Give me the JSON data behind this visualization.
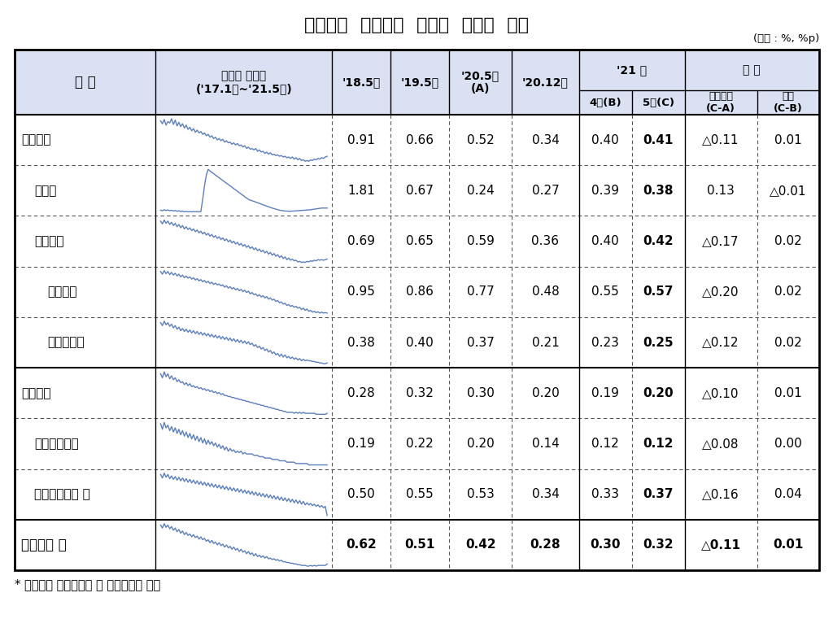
{
  "title": "국내은행  원화대출  부문별  연체율  추이",
  "unit_label": "(단위 : %, %p)",
  "footnote": "* 은행계정 원화대출금 및 신탁대출금 기준",
  "header_bg": "#d9e1f2",
  "sparkline_color": "#5b7fbe",
  "background_color": "#ffffff",
  "rows": [
    {
      "label": "기업대출",
      "indent": 0,
      "bold_label": false,
      "values": [
        "0.91",
        "0.66",
        "0.52",
        "0.34",
        "0.40",
        "0.41",
        "△0.11",
        "0.01"
      ],
      "bold_cols": [
        5
      ],
      "bold_all": false,
      "sp": "기업대출"
    },
    {
      "label": "대기업",
      "indent": 1,
      "bold_label": false,
      "values": [
        "1.81",
        "0.67",
        "0.24",
        "0.27",
        "0.39",
        "0.38",
        "0.13",
        "△0.01"
      ],
      "bold_cols": [
        5
      ],
      "bold_all": false,
      "sp": "대기업"
    },
    {
      "label": "중소기업",
      "indent": 1,
      "bold_label": false,
      "values": [
        "0.69",
        "0.65",
        "0.59",
        "0.36",
        "0.40",
        "0.42",
        "△0.17",
        "0.02"
      ],
      "bold_cols": [
        5
      ],
      "bold_all": false,
      "sp": "중소기업"
    },
    {
      "label": "중소법인",
      "indent": 2,
      "bold_label": false,
      "values": [
        "0.95",
        "0.86",
        "0.77",
        "0.48",
        "0.55",
        "0.57",
        "△0.20",
        "0.02"
      ],
      "bold_cols": [
        5
      ],
      "bold_all": false,
      "sp": "중소법인"
    },
    {
      "label": "개인사업자",
      "indent": 2,
      "bold_label": false,
      "values": [
        "0.38",
        "0.40",
        "0.37",
        "0.21",
        "0.23",
        "0.25",
        "△0.12",
        "0.02"
      ],
      "bold_cols": [
        5
      ],
      "bold_all": false,
      "sp": "개인사업자"
    },
    {
      "label": "가계대출",
      "indent": 0,
      "bold_label": false,
      "values": [
        "0.28",
        "0.32",
        "0.30",
        "0.20",
        "0.19",
        "0.20",
        "△0.10",
        "0.01"
      ],
      "bold_cols": [
        5
      ],
      "bold_all": false,
      "sp": "가계대출"
    },
    {
      "label": "주택담보대출",
      "indent": 1,
      "bold_label": false,
      "values": [
        "0.19",
        "0.22",
        "0.20",
        "0.14",
        "0.12",
        "0.12",
        "△0.08",
        "0.00"
      ],
      "bold_cols": [
        5
      ],
      "bold_all": false,
      "sp": "주택담보대출"
    },
    {
      "label": "가계신용대출 등",
      "indent": 1,
      "bold_label": false,
      "values": [
        "0.50",
        "0.55",
        "0.53",
        "0.34",
        "0.33",
        "0.37",
        "△0.16",
        "0.04"
      ],
      "bold_cols": [
        5
      ],
      "bold_all": false,
      "sp": "가계신용대출"
    },
    {
      "label": "원화대출 계",
      "indent": 0,
      "bold_label": true,
      "values": [
        "0.62",
        "0.51",
        "0.42",
        "0.28",
        "0.30",
        "0.32",
        "△0.11",
        "0.01"
      ],
      "bold_cols": [
        0,
        1,
        2,
        3,
        4,
        5,
        6,
        7
      ],
      "bold_all": true,
      "sp": "원화대출계"
    }
  ],
  "sparkline_data": {
    "기업대출": [
      0.91,
      0.87,
      0.93,
      0.85,
      0.9,
      0.88,
      0.94,
      0.86,
      0.92,
      0.84,
      0.89,
      0.83,
      0.87,
      0.81,
      0.85,
      0.79,
      0.82,
      0.77,
      0.8,
      0.75,
      0.78,
      0.74,
      0.76,
      0.72,
      0.74,
      0.7,
      0.72,
      0.68,
      0.7,
      0.66,
      0.68,
      0.64,
      0.66,
      0.63,
      0.65,
      0.61,
      0.63,
      0.6,
      0.61,
      0.58,
      0.6,
      0.57,
      0.59,
      0.56,
      0.57,
      0.54,
      0.56,
      0.52,
      0.54,
      0.51,
      0.52,
      0.5,
      0.52,
      0.48,
      0.5,
      0.47,
      0.48,
      0.45,
      0.47,
      0.44,
      0.46,
      0.43,
      0.44,
      0.42,
      0.43,
      0.41,
      0.42,
      0.4,
      0.41,
      0.39,
      0.4,
      0.38,
      0.4,
      0.37,
      0.39,
      0.36,
      0.38,
      0.35,
      0.36,
      0.34,
      0.35,
      0.34,
      0.36,
      0.35,
      0.37,
      0.36,
      0.38,
      0.37,
      0.39,
      0.38,
      0.4,
      0.41
    ],
    "대기업": [
      0.3,
      0.28,
      0.32,
      0.29,
      0.31,
      0.28,
      0.3,
      0.27,
      0.29,
      0.26,
      0.28,
      0.25,
      0.27,
      0.24,
      0.26,
      0.24,
      0.25,
      0.24,
      0.25,
      0.24,
      0.25,
      0.24,
      0.25,
      0.7,
      1.2,
      1.6,
      1.81,
      1.75,
      1.7,
      1.65,
      1.6,
      1.55,
      1.5,
      1.45,
      1.4,
      1.35,
      1.3,
      1.25,
      1.2,
      1.15,
      1.1,
      1.05,
      1.0,
      0.95,
      0.9,
      0.85,
      0.8,
      0.75,
      0.7,
      0.67,
      0.65,
      0.63,
      0.6,
      0.58,
      0.55,
      0.53,
      0.5,
      0.48,
      0.45,
      0.43,
      0.4,
      0.38,
      0.36,
      0.34,
      0.32,
      0.3,
      0.29,
      0.28,
      0.27,
      0.27,
      0.26,
      0.26,
      0.27,
      0.27,
      0.28,
      0.28,
      0.29,
      0.29,
      0.3,
      0.3,
      0.31,
      0.31,
      0.32,
      0.33,
      0.34,
      0.35,
      0.36,
      0.37,
      0.38,
      0.38,
      0.38,
      0.38
    ],
    "중소기업": [
      1.1,
      1.05,
      1.12,
      1.06,
      1.1,
      1.04,
      1.08,
      1.02,
      1.06,
      1.0,
      1.04,
      0.98,
      1.02,
      0.96,
      1.0,
      0.95,
      0.98,
      0.93,
      0.96,
      0.91,
      0.94,
      0.89,
      0.92,
      0.87,
      0.9,
      0.85,
      0.88,
      0.83,
      0.86,
      0.81,
      0.84,
      0.79,
      0.82,
      0.77,
      0.8,
      0.75,
      0.78,
      0.73,
      0.76,
      0.71,
      0.74,
      0.69,
      0.72,
      0.67,
      0.7,
      0.65,
      0.68,
      0.63,
      0.66,
      0.61,
      0.64,
      0.59,
      0.62,
      0.57,
      0.6,
      0.55,
      0.58,
      0.53,
      0.56,
      0.51,
      0.54,
      0.49,
      0.52,
      0.47,
      0.5,
      0.45,
      0.48,
      0.43,
      0.46,
      0.41,
      0.44,
      0.4,
      0.42,
      0.39,
      0.4,
      0.37,
      0.38,
      0.36,
      0.37,
      0.36,
      0.38,
      0.37,
      0.39,
      0.38,
      0.4,
      0.39,
      0.41,
      0.4,
      0.41,
      0.4,
      0.41,
      0.42
    ],
    "중소법인": [
      1.5,
      1.44,
      1.52,
      1.45,
      1.5,
      1.43,
      1.48,
      1.42,
      1.46,
      1.4,
      1.44,
      1.38,
      1.42,
      1.36,
      1.4,
      1.35,
      1.38,
      1.33,
      1.36,
      1.31,
      1.34,
      1.29,
      1.32,
      1.27,
      1.3,
      1.25,
      1.28,
      1.23,
      1.26,
      1.21,
      1.24,
      1.2,
      1.22,
      1.18,
      1.2,
      1.15,
      1.18,
      1.13,
      1.16,
      1.11,
      1.14,
      1.09,
      1.12,
      1.07,
      1.1,
      1.05,
      1.08,
      1.03,
      1.06,
      1.0,
      1.03,
      0.98,
      1.0,
      0.95,
      0.98,
      0.93,
      0.96,
      0.91,
      0.94,
      0.88,
      0.91,
      0.86,
      0.88,
      0.83,
      0.85,
      0.8,
      0.82,
      0.77,
      0.79,
      0.74,
      0.76,
      0.72,
      0.74,
      0.7,
      0.72,
      0.68,
      0.7,
      0.65,
      0.68,
      0.63,
      0.66,
      0.61,
      0.63,
      0.59,
      0.61,
      0.58,
      0.6,
      0.57,
      0.59,
      0.57,
      0.58,
      0.57
    ],
    "개인사업자": [
      0.8,
      0.76,
      0.82,
      0.77,
      0.8,
      0.75,
      0.78,
      0.73,
      0.76,
      0.71,
      0.74,
      0.69,
      0.72,
      0.68,
      0.71,
      0.67,
      0.7,
      0.66,
      0.69,
      0.65,
      0.68,
      0.64,
      0.67,
      0.63,
      0.66,
      0.62,
      0.65,
      0.61,
      0.64,
      0.6,
      0.63,
      0.59,
      0.62,
      0.58,
      0.61,
      0.57,
      0.6,
      0.56,
      0.59,
      0.55,
      0.58,
      0.54,
      0.57,
      0.53,
      0.56,
      0.52,
      0.55,
      0.51,
      0.54,
      0.5,
      0.52,
      0.48,
      0.5,
      0.46,
      0.48,
      0.44,
      0.46,
      0.42,
      0.44,
      0.4,
      0.42,
      0.38,
      0.4,
      0.36,
      0.38,
      0.34,
      0.37,
      0.33,
      0.36,
      0.32,
      0.34,
      0.31,
      0.33,
      0.3,
      0.32,
      0.29,
      0.31,
      0.28,
      0.3,
      0.28,
      0.29,
      0.28,
      0.28,
      0.27,
      0.27,
      0.26,
      0.26,
      0.25,
      0.25,
      0.24,
      0.24,
      0.25
    ],
    "가계대출": [
      0.6,
      0.56,
      0.62,
      0.57,
      0.6,
      0.55,
      0.58,
      0.54,
      0.56,
      0.52,
      0.54,
      0.51,
      0.52,
      0.49,
      0.51,
      0.48,
      0.5,
      0.47,
      0.48,
      0.46,
      0.47,
      0.45,
      0.46,
      0.44,
      0.45,
      0.43,
      0.44,
      0.42,
      0.43,
      0.41,
      0.42,
      0.4,
      0.41,
      0.39,
      0.4,
      0.38,
      0.38,
      0.37,
      0.37,
      0.36,
      0.36,
      0.35,
      0.35,
      0.34,
      0.34,
      0.33,
      0.33,
      0.32,
      0.32,
      0.31,
      0.31,
      0.3,
      0.3,
      0.29,
      0.29,
      0.28,
      0.28,
      0.27,
      0.27,
      0.26,
      0.26,
      0.25,
      0.25,
      0.24,
      0.24,
      0.23,
      0.23,
      0.22,
      0.22,
      0.21,
      0.21,
      0.21,
      0.21,
      0.2,
      0.21,
      0.2,
      0.21,
      0.2,
      0.21,
      0.2,
      0.2,
      0.2,
      0.2,
      0.2,
      0.2,
      0.19,
      0.19,
      0.19,
      0.19,
      0.19,
      0.19,
      0.2
    ],
    "주택담보대출": [
      0.42,
      0.38,
      0.43,
      0.39,
      0.41,
      0.37,
      0.4,
      0.36,
      0.39,
      0.35,
      0.38,
      0.34,
      0.37,
      0.33,
      0.36,
      0.32,
      0.35,
      0.31,
      0.34,
      0.3,
      0.33,
      0.29,
      0.32,
      0.28,
      0.31,
      0.27,
      0.3,
      0.27,
      0.29,
      0.26,
      0.28,
      0.25,
      0.27,
      0.24,
      0.26,
      0.23,
      0.25,
      0.22,
      0.24,
      0.22,
      0.23,
      0.21,
      0.22,
      0.21,
      0.22,
      0.2,
      0.21,
      0.2,
      0.2,
      0.2,
      0.2,
      0.19,
      0.19,
      0.19,
      0.18,
      0.18,
      0.18,
      0.17,
      0.17,
      0.17,
      0.17,
      0.16,
      0.16,
      0.16,
      0.16,
      0.15,
      0.15,
      0.15,
      0.15,
      0.14,
      0.14,
      0.14,
      0.14,
      0.14,
      0.13,
      0.13,
      0.13,
      0.13,
      0.13,
      0.13,
      0.13,
      0.12,
      0.12,
      0.12,
      0.12,
      0.12,
      0.12,
      0.12,
      0.12,
      0.12,
      0.12,
      0.12
    ],
    "가계신용대출": [
      0.95,
      0.9,
      0.97,
      0.91,
      0.95,
      0.89,
      0.93,
      0.88,
      0.92,
      0.87,
      0.91,
      0.86,
      0.9,
      0.85,
      0.89,
      0.84,
      0.88,
      0.83,
      0.87,
      0.82,
      0.86,
      0.81,
      0.85,
      0.8,
      0.84,
      0.79,
      0.83,
      0.78,
      0.82,
      0.77,
      0.81,
      0.76,
      0.8,
      0.75,
      0.79,
      0.74,
      0.78,
      0.73,
      0.77,
      0.72,
      0.76,
      0.71,
      0.75,
      0.7,
      0.74,
      0.69,
      0.73,
      0.68,
      0.72,
      0.67,
      0.71,
      0.66,
      0.7,
      0.65,
      0.69,
      0.64,
      0.68,
      0.63,
      0.67,
      0.62,
      0.66,
      0.61,
      0.65,
      0.6,
      0.64,
      0.59,
      0.63,
      0.58,
      0.62,
      0.57,
      0.61,
      0.56,
      0.6,
      0.55,
      0.59,
      0.54,
      0.58,
      0.53,
      0.57,
      0.52,
      0.55,
      0.52,
      0.54,
      0.51,
      0.53,
      0.5,
      0.52,
      0.49,
      0.51,
      0.48,
      0.5,
      0.37
    ],
    "원화대출계": [
      0.85,
      0.81,
      0.87,
      0.82,
      0.85,
      0.8,
      0.83,
      0.78,
      0.81,
      0.76,
      0.79,
      0.74,
      0.77,
      0.72,
      0.75,
      0.71,
      0.73,
      0.69,
      0.72,
      0.68,
      0.7,
      0.66,
      0.69,
      0.65,
      0.67,
      0.63,
      0.65,
      0.61,
      0.64,
      0.6,
      0.62,
      0.58,
      0.61,
      0.57,
      0.59,
      0.55,
      0.58,
      0.54,
      0.56,
      0.52,
      0.55,
      0.51,
      0.53,
      0.49,
      0.52,
      0.48,
      0.5,
      0.46,
      0.49,
      0.45,
      0.47,
      0.43,
      0.46,
      0.42,
      0.44,
      0.41,
      0.43,
      0.4,
      0.42,
      0.39,
      0.4,
      0.38,
      0.39,
      0.37,
      0.38,
      0.36,
      0.37,
      0.35,
      0.35,
      0.34,
      0.34,
      0.33,
      0.33,
      0.32,
      0.32,
      0.31,
      0.31,
      0.3,
      0.3,
      0.3,
      0.29,
      0.29,
      0.3,
      0.29,
      0.3,
      0.29,
      0.3,
      0.3,
      0.3,
      0.3,
      0.3,
      0.32
    ]
  }
}
